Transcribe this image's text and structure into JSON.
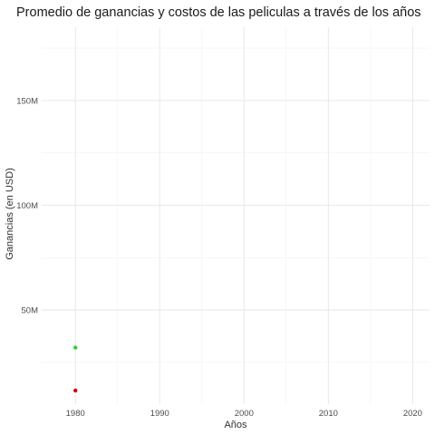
{
  "chart_data": {
    "type": "scatter",
    "title": "Promedio de ganancias y costos de las peliculas a través de los años",
    "xlabel": "Años",
    "ylabel": "Ganancias (en USD)",
    "xlim": [
      1976,
      2022
    ],
    "ylim": [
      5000000,
      185000000
    ],
    "x_ticks": [
      1980,
      1990,
      2000,
      2010,
      2020
    ],
    "x_tick_labels": [
      "1980",
      "1990",
      "2000",
      "2010",
      "2020"
    ],
    "y_ticks": [
      50000000,
      100000000,
      150000000
    ],
    "y_tick_labels": [
      "50M",
      "100M",
      "150M"
    ],
    "grid": true,
    "legend": "none",
    "series": [
      {
        "color": "#33cc33",
        "x": [
          1980
        ],
        "y": [
          32000000
        ]
      },
      {
        "color": "#cc0000",
        "x": [
          1980
        ],
        "y": [
          11500000
        ]
      }
    ]
  }
}
